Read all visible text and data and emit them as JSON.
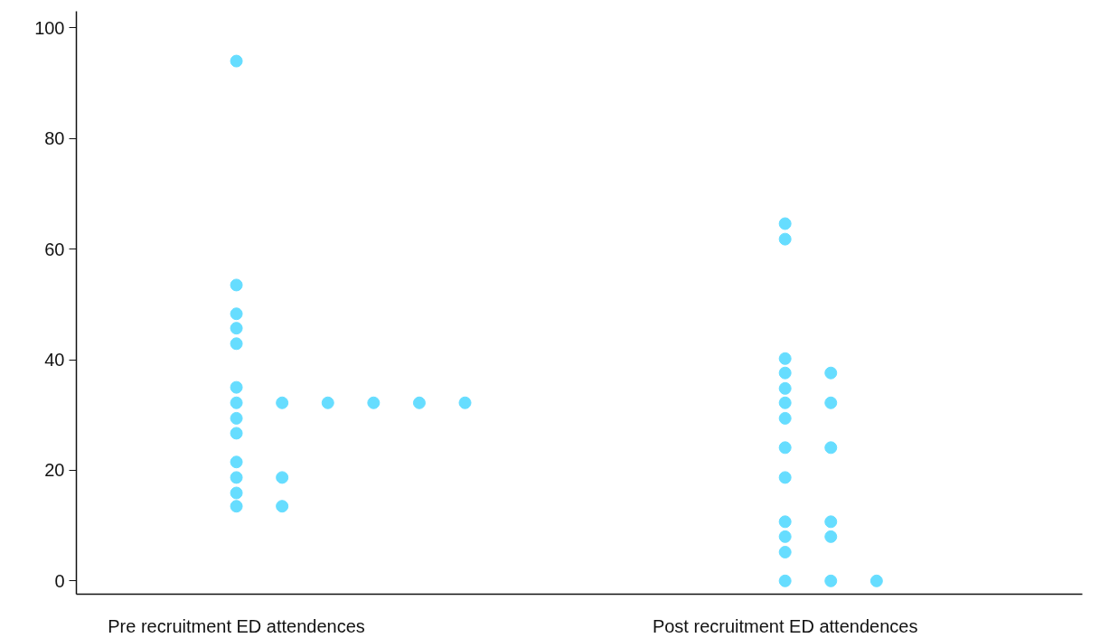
{
  "chart_data": {
    "type": "scatter",
    "marker": "circle",
    "grid": false,
    "categories": [
      null,
      null,
      null,
      "Pre recruitment ED attendences",
      null,
      null,
      null,
      null,
      null,
      null,
      null,
      null,
      null,
      null,
      null,
      "Post recruitment ED attendences",
      null,
      null,
      null,
      null,
      null,
      null
    ],
    "ylim": [
      -2.4,
      103
    ],
    "yticks": [
      0,
      20,
      40,
      60,
      80,
      100
    ],
    "series": [
      {
        "color": "#66ddff",
        "values": [
          null,
          null,
          null,
          94,
          32.2,
          32.2,
          32.2,
          32.2,
          32.2,
          null,
          null,
          null,
          null,
          null,
          null,
          64.6,
          37.6,
          0,
          null,
          null,
          null,
          null
        ]
      },
      {
        "color": "#66ddff",
        "values": [
          null,
          null,
          null,
          53.5,
          18.7,
          null,
          null,
          null,
          null,
          null,
          null,
          null,
          null,
          null,
          null,
          61.8,
          32.2,
          null,
          null,
          null,
          null,
          null
        ]
      },
      {
        "color": "#66ddff",
        "values": [
          null,
          null,
          null,
          48.3,
          13.5,
          null,
          null,
          null,
          null,
          null,
          null,
          null,
          null,
          null,
          null,
          40.2,
          24.1,
          null,
          null,
          null,
          null,
          null
        ]
      },
      {
        "color": "#66ddff",
        "values": [
          null,
          null,
          null,
          45.7,
          null,
          null,
          null,
          null,
          null,
          null,
          null,
          null,
          null,
          null,
          null,
          37.6,
          10.7,
          null,
          null,
          null,
          null,
          null
        ]
      },
      {
        "color": "#66ddff",
        "values": [
          null,
          null,
          null,
          42.9,
          null,
          null,
          null,
          null,
          null,
          null,
          null,
          null,
          null,
          null,
          null,
          34.8,
          8,
          null,
          null,
          null,
          null,
          null
        ]
      },
      {
        "color": "#66ddff",
        "values": [
          null,
          null,
          null,
          35,
          null,
          null,
          null,
          null,
          null,
          null,
          null,
          null,
          null,
          null,
          null,
          32.2,
          0,
          null,
          null,
          null,
          null,
          null
        ]
      },
      {
        "color": "#66ddff",
        "values": [
          null,
          null,
          null,
          32.2,
          null,
          null,
          null,
          null,
          null,
          null,
          null,
          null,
          null,
          null,
          null,
          29.4,
          null,
          null,
          null,
          null,
          null,
          null
        ]
      },
      {
        "color": "#66ddff",
        "values": [
          null,
          null,
          null,
          29.4,
          null,
          null,
          null,
          null,
          null,
          null,
          null,
          null,
          null,
          null,
          null,
          24.1,
          null,
          null,
          null,
          null,
          null,
          null
        ]
      },
      {
        "color": "#66ddff",
        "values": [
          null,
          null,
          null,
          26.7,
          null,
          null,
          null,
          null,
          null,
          null,
          null,
          null,
          null,
          null,
          null,
          18.7,
          null,
          null,
          null,
          null,
          null,
          null
        ]
      },
      {
        "color": "#66ddff",
        "values": [
          null,
          null,
          null,
          21.5,
          null,
          null,
          null,
          null,
          null,
          null,
          null,
          null,
          null,
          null,
          null,
          10.7,
          null,
          null,
          null,
          null,
          null,
          null
        ]
      },
      {
        "color": "#66ddff",
        "values": [
          null,
          null,
          null,
          18.7,
          null,
          null,
          null,
          null,
          null,
          null,
          null,
          null,
          null,
          null,
          null,
          8,
          null,
          null,
          null,
          null,
          null,
          null
        ]
      },
      {
        "color": "#66ddff",
        "values": [
          null,
          null,
          null,
          15.9,
          null,
          null,
          null,
          null,
          null,
          null,
          null,
          null,
          null,
          null,
          null,
          5.2,
          null,
          null,
          null,
          null,
          null,
          null
        ]
      },
      {
        "color": "#66ddff",
        "values": [
          null,
          null,
          null,
          13.5,
          null,
          null,
          null,
          null,
          null,
          null,
          null,
          null,
          null,
          null,
          null,
          0,
          null,
          null,
          null,
          null,
          null,
          null
        ]
      }
    ]
  }
}
